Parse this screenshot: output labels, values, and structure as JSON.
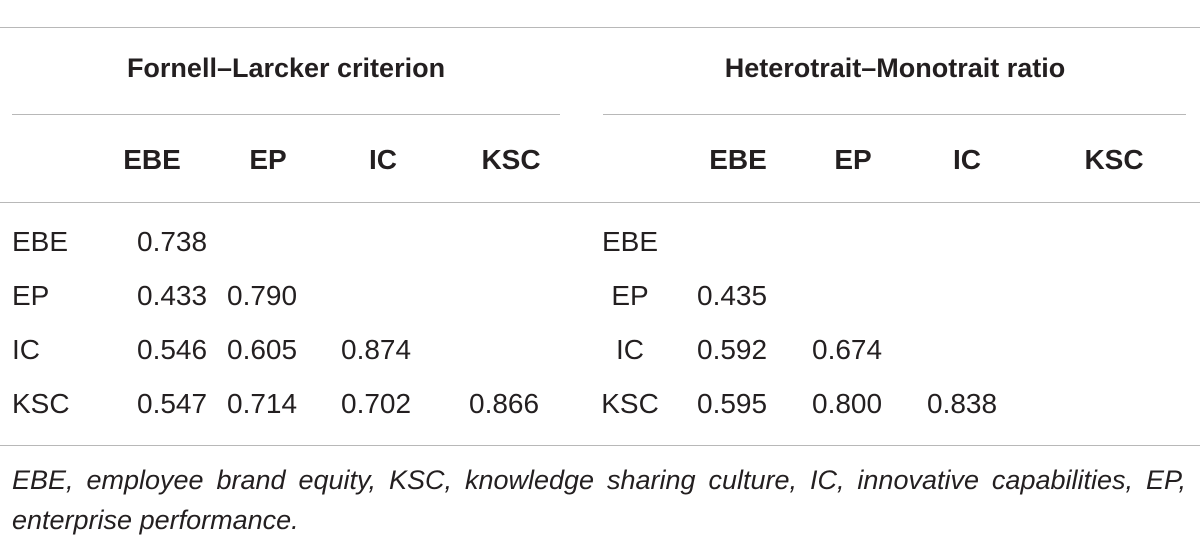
{
  "table": {
    "groups": [
      {
        "title": "Fornell–Larcker criterion",
        "columns": [
          "EBE",
          "EP",
          "IC",
          "KSC"
        ],
        "rows": [
          {
            "label": "EBE",
            "values": [
              "0.738"
            ]
          },
          {
            "label": "EP",
            "values": [
              "0.433",
              "0.790"
            ]
          },
          {
            "label": "IC",
            "values": [
              "0.546",
              "0.605",
              "0.874"
            ]
          },
          {
            "label": "KSC",
            "values": [
              "0.547",
              "0.714",
              "0.702",
              "0.866"
            ]
          }
        ]
      },
      {
        "title": "Heterotrait–Monotrait ratio",
        "columns": [
          "EBE",
          "EP",
          "IC",
          "KSC"
        ],
        "rows": [
          {
            "label": "EBE",
            "values": []
          },
          {
            "label": "EP",
            "values": [
              "0.435"
            ]
          },
          {
            "label": "IC",
            "values": [
              "0.592",
              "0.674"
            ]
          },
          {
            "label": "KSC",
            "values": [
              "0.595",
              "0.800",
              "0.838"
            ]
          }
        ]
      }
    ],
    "footnote": "EBE, employee brand equity, KSC, knowledge sharing culture, IC, innovative capabilities, EP, enterprise performance."
  }
}
